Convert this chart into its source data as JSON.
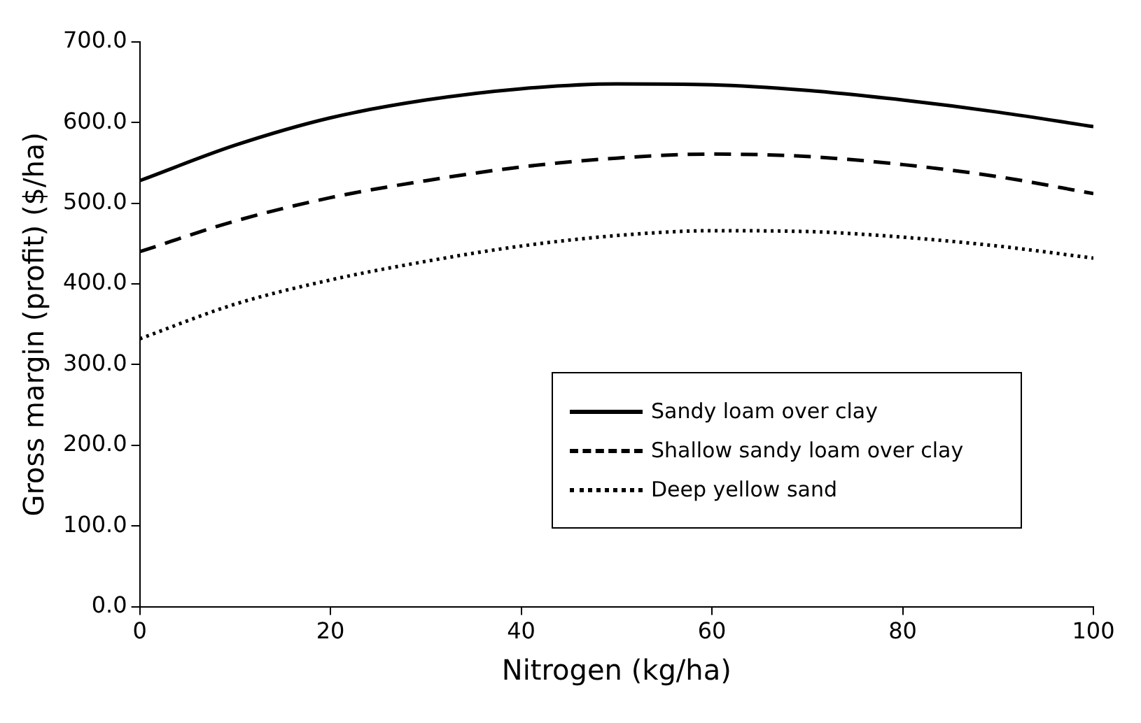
{
  "chart_data": {
    "type": "line",
    "xlabel": "Nitrogen (kg/ha)",
    "ylabel": "Gross margin (profit) ($/ha)",
    "x": [
      0,
      10,
      20,
      30,
      40,
      50,
      60,
      70,
      80,
      90,
      100
    ],
    "series": [
      {
        "name": "Sandy loam over clay",
        "color": "#000000",
        "line_style": "solid",
        "values": [
          528,
          572,
          606,
          628,
          642,
          648,
          647,
          640,
          628,
          613,
          595
        ]
      },
      {
        "name": "Shallow sandy loam over clay",
        "color": "#000000",
        "line_style": "dashed",
        "values": [
          440,
          478,
          507,
          528,
          545,
          556,
          561,
          558,
          548,
          533,
          512
        ]
      },
      {
        "name": "Deep yellow sand",
        "color": "#000000",
        "line_style": "dotted",
        "values": [
          332,
          375,
          405,
          428,
          447,
          460,
          466,
          465,
          458,
          447,
          432
        ]
      }
    ],
    "xlim": [
      0,
      100
    ],
    "xticks": [
      0,
      20,
      40,
      60,
      80,
      100
    ],
    "ylim": [
      0,
      700
    ],
    "yticks": [
      {
        "value": 0,
        "label": "0.0"
      },
      {
        "value": 100,
        "label": "100.0"
      },
      {
        "value": 200,
        "label": "200.0"
      },
      {
        "value": 300,
        "label": "300.0"
      },
      {
        "value": 400,
        "label": "400.0"
      },
      {
        "value": 500,
        "label": "500.0"
      },
      {
        "value": 600,
        "label": "600.0"
      },
      {
        "value": 700,
        "label": "700.0"
      }
    ],
    "grid": false,
    "legend": "bottom right",
    "marker": "none"
  }
}
